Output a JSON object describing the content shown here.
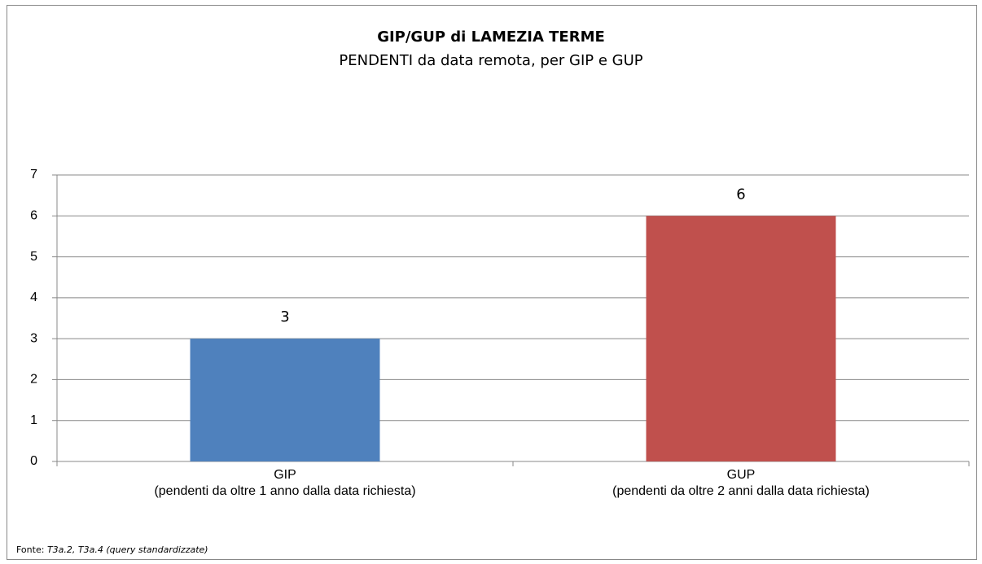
{
  "chart_data": {
    "type": "bar",
    "title": "GIP/GUP di LAMEZIA TERME",
    "subtitle": "PENDENTI da data remota, per GIP e GUP",
    "categories": [
      "GIP",
      "GUP"
    ],
    "category_notes": [
      "(pendenti da oltre 1 anno dalla data richiesta)",
      "(pendenti da oltre 2 anni dalla data richiesta)"
    ],
    "values": [
      3,
      6
    ],
    "colors": [
      "#4f81bd",
      "#c0504d"
    ],
    "ylim": [
      0,
      7
    ],
    "yticks": [
      0,
      1,
      2,
      3,
      4,
      5,
      6,
      7
    ],
    "grid": true,
    "source_label": "Fonte:",
    "source": "T3a.2, T3a.4 (query standardizzate)"
  }
}
